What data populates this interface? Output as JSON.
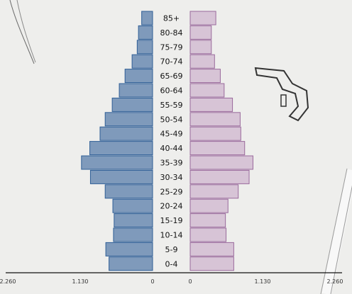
{
  "chart_data": {
    "type": "bar",
    "orientation": "horizontal",
    "layout": "population-pyramid",
    "categories": [
      "85+",
      "80-84",
      "75-79",
      "70-74",
      "65-69",
      "60-64",
      "55-59",
      "50-54",
      "45-49",
      "40-44",
      "35-39",
      "30-34",
      "25-29",
      "20-24",
      "15-19",
      "10-14",
      "5-9",
      "0-4"
    ],
    "series": [
      {
        "side": "left",
        "color": "#7f9abb",
        "stroke": "#2f5e96",
        "values": [
          170,
          220,
          240,
          320,
          430,
          520,
          630,
          740,
          820,
          980,
          1110,
          970,
          740,
          620,
          600,
          610,
          730,
          680
        ]
      },
      {
        "side": "right",
        "color": "#d7c4d6",
        "stroke": "#9a6a9c",
        "values": [
          400,
          330,
          330,
          380,
          470,
          530,
          660,
          780,
          790,
          850,
          980,
          920,
          750,
          590,
          550,
          560,
          680,
          680
        ]
      }
    ],
    "x_ticks_left": [
      "2.260",
      "1.130",
      "0"
    ],
    "x_ticks_right": [
      "0",
      "1.130",
      "2.260"
    ],
    "xlim": [
      0,
      2260
    ]
  }
}
